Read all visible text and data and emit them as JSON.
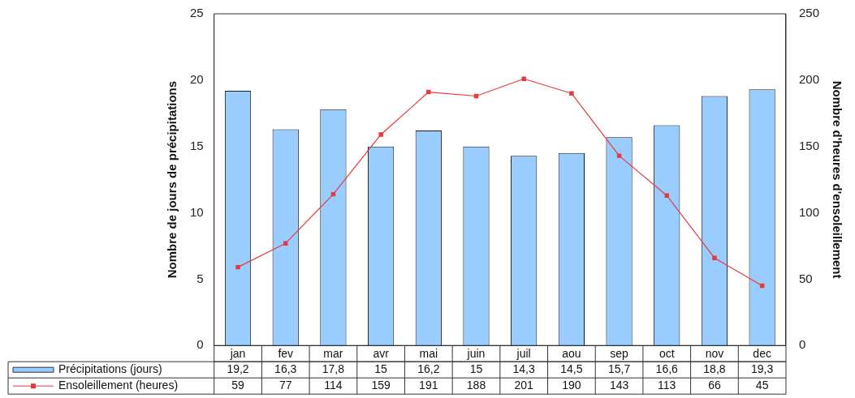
{
  "chart_data": {
    "type": "bar",
    "categories": [
      "jan",
      "fev",
      "mar",
      "avr",
      "mai",
      "juin",
      "juil",
      "aou",
      "sep",
      "oct",
      "nov",
      "dec"
    ],
    "ylabel": "Nombre de jours de précipitations",
    "y2label": "Nombre d'heures d'ensoleillement",
    "series": [
      {
        "name": "Précipitations (jours)",
        "color": "#99ccff",
        "values": [
          19.2,
          16.3,
          17.8,
          15,
          16.2,
          15,
          14.3,
          14.5,
          15.7,
          16.6,
          18.8,
          19.3
        ],
        "value_labels": [
          "19,2",
          "16,3",
          "17,8",
          "15",
          "16,2",
          "15",
          "14,3",
          "14,5",
          "15,7",
          "16,6",
          "18,8",
          "19,3"
        ]
      },
      {
        "name": "Ensoleillement (heures)",
        "type": "line",
        "axis": "y2",
        "color": "#e8393a",
        "marker": "square",
        "values": [
          59,
          77,
          114,
          159,
          191,
          188,
          201,
          190,
          143,
          113,
          66,
          45
        ],
        "value_labels": [
          "59",
          "77",
          "114",
          "159",
          "191",
          "188",
          "201",
          "190",
          "143",
          "113",
          "66",
          "45"
        ]
      }
    ],
    "ylim": [
      0,
      25
    ],
    "yticks": [
      0,
      5,
      10,
      15,
      20,
      25
    ],
    "y2lim": [
      0,
      250
    ],
    "y2ticks": [
      0,
      50,
      100,
      150,
      200,
      250
    ],
    "grid": false,
    "legend": "bottom"
  }
}
